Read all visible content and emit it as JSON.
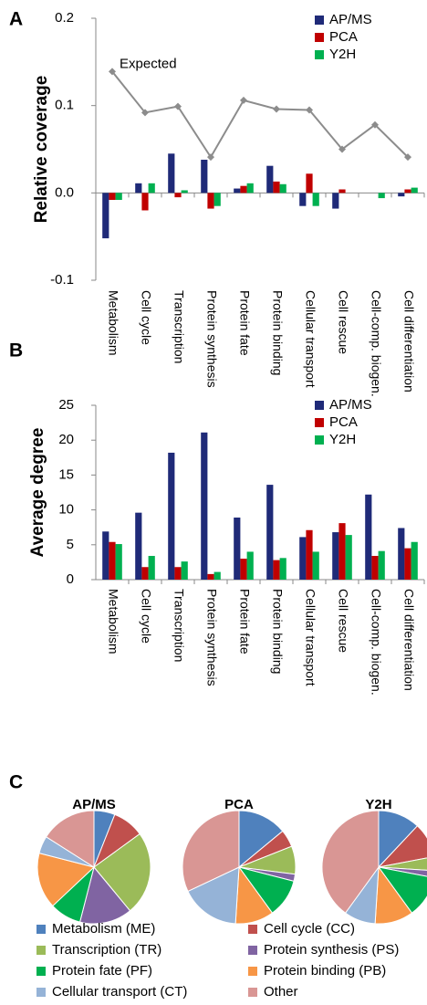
{
  "chart_data": [
    {
      "type": "bar",
      "panel_label": "A",
      "y_label": "Relative coverage",
      "categories": [
        "Metabolism",
        "Cell cycle",
        "Transcription",
        "Protein synthesis",
        "Protein fate",
        "Protein binding",
        "Cellular transport",
        "Cell rescue",
        "Cell-comp. biogen.",
        "Cell differentiation"
      ],
      "series": [
        {
          "name": "AP/MS",
          "color": "#1f2a78",
          "values": [
            -0.052,
            0.011,
            0.045,
            0.038,
            0.005,
            0.031,
            -0.015,
            -0.018,
            0,
            -0.004
          ]
        },
        {
          "name": "PCA",
          "color": "#c00000",
          "values": [
            -0.008,
            -0.02,
            -0.005,
            -0.018,
            0.008,
            0.013,
            0.022,
            0.004,
            0,
            0.004
          ]
        },
        {
          "name": "Y2H",
          "color": "#00b050",
          "values": [
            -0.008,
            0.011,
            0.003,
            -0.015,
            0.011,
            0.01,
            -0.015,
            0,
            -0.006,
            0.006
          ]
        },
        {
          "name": "Expected",
          "type": "line",
          "color": "#8c8c8c",
          "values": [
            0.139,
            0.092,
            0.099,
            0.041,
            0.106,
            0.096,
            0.095,
            0.05,
            0.078,
            0.041
          ]
        }
      ],
      "ylim": [
        -0.1,
        0.2
      ],
      "yticks": [
        -0.1,
        {
          "value": 0,
          "label": "0.0"
        },
        0.1,
        0.2
      ],
      "legend": "upper right"
    },
    {
      "type": "bar",
      "panel_label": "B",
      "y_label": "Average degree",
      "categories": [
        "Metabolism",
        "Cell cycle",
        "Transcription",
        "Protein synthesis",
        "Protein fate",
        "Protein binding",
        "Cellular transport",
        "Cell rescue",
        "Cell-comp. biogen.",
        "Cell differentiation"
      ],
      "series": [
        {
          "name": "AP/MS",
          "color": "#1f2a78",
          "values": [
            6.9,
            9.6,
            18.2,
            21.1,
            8.9,
            13.6,
            6.1,
            6.8,
            12.2,
            7.4
          ]
        },
        {
          "name": "PCA",
          "color": "#c00000",
          "values": [
            5.4,
            1.8,
            1.8,
            0.8,
            3.0,
            2.8,
            7.1,
            8.1,
            3.4,
            4.5
          ]
        },
        {
          "name": "Y2H",
          "color": "#00b050",
          "values": [
            5.1,
            3.4,
            2.6,
            1.1,
            4.0,
            3.1,
            4.0,
            6.4,
            4.1,
            5.4
          ]
        }
      ],
      "ylim": [
        0,
        25
      ],
      "yticks": [
        0,
        5,
        10,
        15,
        20,
        25
      ],
      "legend": "upper right"
    },
    {
      "type": "pie",
      "panel_label": "C",
      "categories": [
        "Metabolism (ME)",
        "Cell cycle (CC)",
        "Transcription (TR)",
        "Protein synthesis (PS)",
        "Protein fate (PF)",
        "Protein binding (PB)",
        "Cellular transport (CT)",
        "Other"
      ],
      "colors": [
        "#4f81bd",
        "#c0504d",
        "#9bbb59",
        "#8064a2",
        "#00b050",
        "#f79646",
        "#95b3d7",
        "#d99694"
      ],
      "series": [
        {
          "name": "AP/MS",
          "values": [
            6,
            9,
            24,
            15,
            9,
            16,
            5,
            16
          ]
        },
        {
          "name": "PCA",
          "values": [
            14,
            5,
            8,
            2,
            11,
            11,
            17,
            32
          ]
        },
        {
          "name": "Y2H",
          "values": [
            12,
            10,
            4,
            2,
            12,
            11,
            9,
            40
          ]
        }
      ],
      "legend": "bottom"
    }
  ]
}
